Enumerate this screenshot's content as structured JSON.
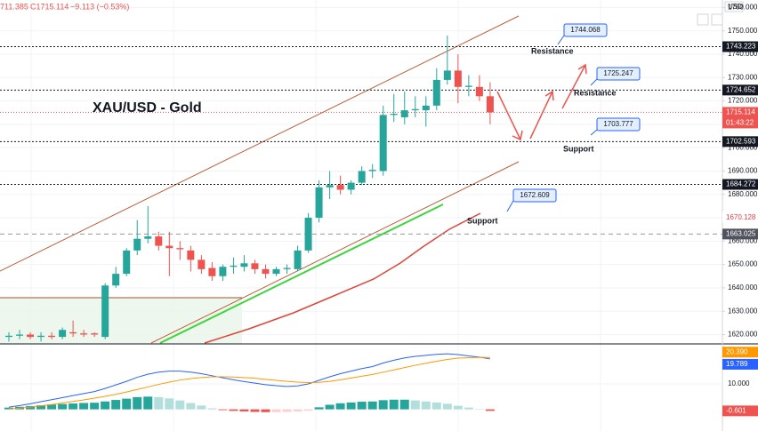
{
  "chart_data": [
    {
      "type": "candlestick",
      "title": "XAU/USD - Gold",
      "header": [
        "711.385",
        "C1715.114",
        "−9.113 (−0.53%)"
      ],
      "currency": "USD",
      "categories": [
        null,
        null,
        null,
        null,
        null,
        null,
        null,
        null,
        null,
        null,
        null,
        null,
        null,
        null,
        null,
        null,
        null,
        null,
        null,
        null,
        null,
        null,
        null,
        null,
        null,
        null,
        null,
        null,
        null,
        null,
        null,
        null,
        null,
        null,
        null,
        null,
        null,
        null,
        null,
        null,
        null,
        null,
        null,
        null,
        null,
        null
      ],
      "open": [
        1619,
        1619.5,
        1620,
        1619,
        1619.5,
        1619,
        1621,
        1620.5,
        1620.5,
        1619,
        1641,
        1646,
        1656,
        1661,
        1662,
        1658,
        1657,
        1656,
        1652,
        1648.5,
        1645,
        1649,
        1649,
        1650.5,
        1648,
        1646,
        1648,
        1648,
        1656,
        1670,
        1683,
        1684,
        1682,
        1685,
        1690,
        1690,
        1714,
        1713,
        1716,
        1716,
        1718,
        1729,
        1733,
        1726,
        1726,
        1722
      ],
      "high": [
        1621,
        1622,
        1621,
        1621,
        1621,
        1623,
        1626,
        1622,
        1621,
        1642,
        1649,
        1657,
        1669,
        1675,
        1664,
        1664,
        1660,
        1658,
        1654,
        1651,
        1650,
        1653,
        1654,
        1652,
        1650,
        1649,
        1650,
        1658,
        1672,
        1686,
        1690,
        1688,
        1686,
        1692,
        1693,
        1718,
        1723,
        1724,
        1722,
        1722,
        1734,
        1748,
        1740,
        1731,
        1731,
        1728
      ],
      "low": [
        1617,
        1618,
        1618,
        1617,
        1618,
        1618,
        1619,
        1619,
        1619,
        1618,
        1640,
        1645,
        1654,
        1659,
        1656,
        1645,
        1652,
        1647,
        1646,
        1643,
        1643,
        1646,
        1647,
        1646,
        1644,
        1645,
        1646,
        1647,
        1655,
        1668,
        1678,
        1680,
        1680,
        1684,
        1687,
        1688,
        1711,
        1710,
        1713,
        1709,
        1716,
        1727,
        1719,
        1722,
        1720,
        1710
      ],
      "close": [
        1619.5,
        1620,
        1619,
        1619.5,
        1619,
        1622,
        1620.5,
        1620,
        1620,
        1641,
        1646,
        1656,
        1661,
        1662,
        1658,
        1657,
        1656.5,
        1652,
        1648,
        1645,
        1649,
        1649.5,
        1650.5,
        1648,
        1646,
        1648,
        1648.5,
        1656,
        1670,
        1683,
        1684,
        1682,
        1685,
        1690,
        1690.5,
        1714,
        1714.5,
        1716,
        1716.5,
        1718,
        1729,
        1733,
        1726,
        1726.5,
        1722,
        1715.114
      ],
      "up_color": "#26a69a",
      "down_color": "#ef5350",
      "ylim": [
        1616.0,
        1763.2
      ],
      "yticks": [
        {
          "value": 1620,
          "label": "1620.000"
        },
        {
          "value": 1630,
          "label": "1630.000"
        },
        {
          "value": 1640,
          "label": "1640.000"
        },
        {
          "value": 1650,
          "label": "1650.000"
        },
        {
          "value": 1660,
          "label": "1660.000"
        },
        {
          "value": 1670,
          "label": "1670.000"
        },
        {
          "value": 1680,
          "label": "1680.000"
        },
        {
          "value": 1690,
          "label": "1690.000"
        },
        {
          "value": 1700,
          "label": "1700.000"
        },
        {
          "value": 1710,
          "label": "1710.000"
        },
        {
          "value": 1720,
          "label": "1720.000"
        },
        {
          "value": 1730,
          "label": "1730.000"
        },
        {
          "value": 1740,
          "label": "1740.000"
        },
        {
          "value": 1750,
          "label": "1750.000"
        },
        {
          "value": 1760,
          "label": "1760.000"
        }
      ],
      "grid": true,
      "levels": [
        {
          "value": 1743.223,
          "line": "dotted",
          "tag_bg": "#131722",
          "tag_fg": "#ffffff"
        },
        {
          "value": 1724.652,
          "line": "dotted",
          "tag_bg": "#131722",
          "tag_fg": "#ffffff"
        },
        {
          "value": 1702.593,
          "line": "dotted",
          "tag_bg": "#131722",
          "tag_fg": "#ffffff"
        },
        {
          "value": 1684.272,
          "line": "dotted",
          "tag_bg": "#131722",
          "tag_fg": "#ffffff"
        },
        {
          "value": 1670.128,
          "line": "none",
          "tag_bg": "#ffffff",
          "tag_fg": "#f23645"
        },
        {
          "value": 1663.025,
          "line": "dashed",
          "tag_bg": "#50535e",
          "tag_fg": "#ffffff"
        }
      ],
      "last_price": {
        "value": 1715.114,
        "countdown": "01:43:22",
        "color": "#ef5350"
      },
      "annotations": [
        "1744.068",
        "Resistance",
        "1725.247",
        "Resistance",
        "1703.777",
        "Support",
        "1672.609",
        "Support"
      ]
    },
    {
      "type": "macd",
      "categories": [
        null,
        null,
        null,
        null,
        null,
        null,
        null,
        null,
        null,
        null,
        null,
        null,
        null,
        null,
        null,
        null,
        null,
        null,
        null,
        null,
        null,
        null,
        null,
        null,
        null,
        null,
        null,
        null,
        null,
        null,
        null,
        null,
        null,
        null,
        null,
        null,
        null,
        null,
        null,
        null,
        null,
        null,
        null,
        null,
        null,
        null
      ],
      "series": [
        {
          "color": "#2962ff",
          "values": [
            0.9,
            1.5,
            2.2,
            3.0,
            3.8,
            4.6,
            5.4,
            6.2,
            7.0,
            8.2,
            9.6,
            11.0,
            12.6,
            13.8,
            14.6,
            15.0,
            15.0,
            14.6,
            14.0,
            13.2,
            12.4,
            11.6,
            10.9,
            10.3,
            9.7,
            9.3,
            9.0,
            9.2,
            10.0,
            11.4,
            12.8,
            14.0,
            15.0,
            16.0,
            16.8,
            18.2,
            19.3,
            20.2,
            20.8,
            21.2,
            21.6,
            21.8,
            21.5,
            21.0,
            20.5,
            19.789
          ]
        },
        {
          "color": "#ff9800",
          "values": [
            0.2,
            0.5,
            0.9,
            1.4,
            1.9,
            2.5,
            3.1,
            3.7,
            4.4,
            5.1,
            5.9,
            6.8,
            7.8,
            8.8,
            9.8,
            10.7,
            11.5,
            12.1,
            12.5,
            12.8,
            12.8,
            12.7,
            12.5,
            12.2,
            11.8,
            11.4,
            11.0,
            10.7,
            10.5,
            10.6,
            11.0,
            11.6,
            12.3,
            13.0,
            13.7,
            14.6,
            15.5,
            16.4,
            17.3,
            18.1,
            18.9,
            19.6,
            20.1,
            20.3,
            20.4,
            20.39
          ]
        }
      ],
      "histogram": {
        "values": [
          0.7,
          1.0,
          1.3,
          1.6,
          1.9,
          2.1,
          2.3,
          2.5,
          2.6,
          3.1,
          3.7,
          4.2,
          4.8,
          5.0,
          4.8,
          4.3,
          3.5,
          2.5,
          1.5,
          0.4,
          -0.3,
          -0.6,
          -0.8,
          -1.0,
          -1.1,
          -1.1,
          -1.0,
          -0.8,
          -0.5,
          0.8,
          1.8,
          2.4,
          2.7,
          3.0,
          3.1,
          3.6,
          3.8,
          3.8,
          3.5,
          3.1,
          2.7,
          2.2,
          1.4,
          0.7,
          0.1,
          -0.601
        ],
        "colors": [
          "#26a69a",
          "#b2dfdb",
          "#ffcdd2",
          "#ef5350"
        ]
      },
      "ylim": [
        -8.5,
        25.7
      ],
      "yticks": [
        {
          "value": 10,
          "label": "10.000"
        }
      ],
      "tags": [
        {
          "value": 20.39,
          "label": "20.390",
          "color": "#ff9800"
        },
        {
          "value": 19.789,
          "label": "19.789",
          "color": "#2962ff"
        },
        {
          "value": -0.601,
          "label": "-0.601",
          "color": "#ef5350"
        }
      ]
    }
  ]
}
